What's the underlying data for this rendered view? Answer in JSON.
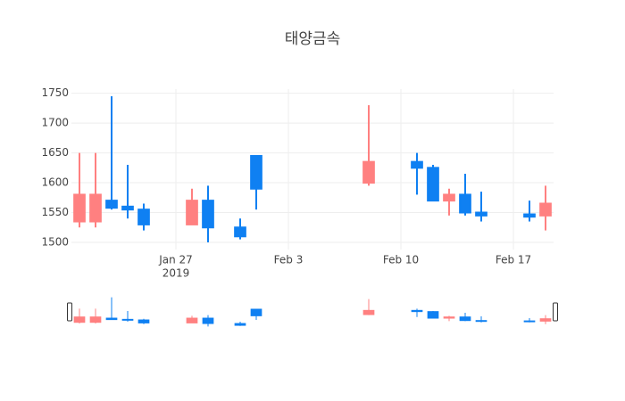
{
  "chart_data": {
    "type": "candlestick",
    "title": "태양금속",
    "x": [
      "2019-01-21",
      "2019-01-22",
      "2019-01-23",
      "2019-01-24",
      "2019-01-25",
      "2019-01-28",
      "2019-01-29",
      "2019-01-31",
      "2019-02-01",
      "2019-02-08",
      "2019-02-11",
      "2019-02-12",
      "2019-02-13",
      "2019-02-14",
      "2019-02-15",
      "2019-02-18",
      "2019-02-19"
    ],
    "open": [
      1535,
      1535,
      1570,
      1560,
      1555,
      1530,
      1570,
      1525,
      1645,
      1600,
      1635,
      1625,
      1570,
      1580,
      1550,
      1547,
      1545
    ],
    "high": [
      1650,
      1650,
      1745,
      1630,
      1565,
      1590,
      1595,
      1540,
      1645,
      1730,
      1650,
      1630,
      1590,
      1615,
      1585,
      1570,
      1595
    ],
    "low": [
      1525,
      1525,
      1555,
      1540,
      1520,
      1530,
      1500,
      1505,
      1555,
      1595,
      1580,
      1570,
      1545,
      1545,
      1535,
      1535,
      1520
    ],
    "close": [
      1580,
      1580,
      1558,
      1555,
      1530,
      1570,
      1525,
      1510,
      1590,
      1635,
      1625,
      1570,
      1580,
      1550,
      1545,
      1543,
      1565
    ],
    "increasing_color": "#ff8080",
    "decreasing_color": "#0f80f2",
    "xlim": [
      "2019-01-20T12:00",
      "2019-02-19T12:00"
    ],
    "xticks": [
      {
        "value": "2019-01-27",
        "label": "Jan 27"
      },
      {
        "value": "2019-02-03",
        "label": "Feb 3"
      },
      {
        "value": "2019-02-10",
        "label": "Feb 10"
      },
      {
        "value": "2019-02-17",
        "label": "Feb 17"
      }
    ],
    "x_year_label": "2019",
    "ylim": [
      1488,
      1757
    ],
    "yticks": [
      1500,
      1550,
      1600,
      1650,
      1700,
      1750
    ],
    "grid": true,
    "rangeslider": true
  }
}
